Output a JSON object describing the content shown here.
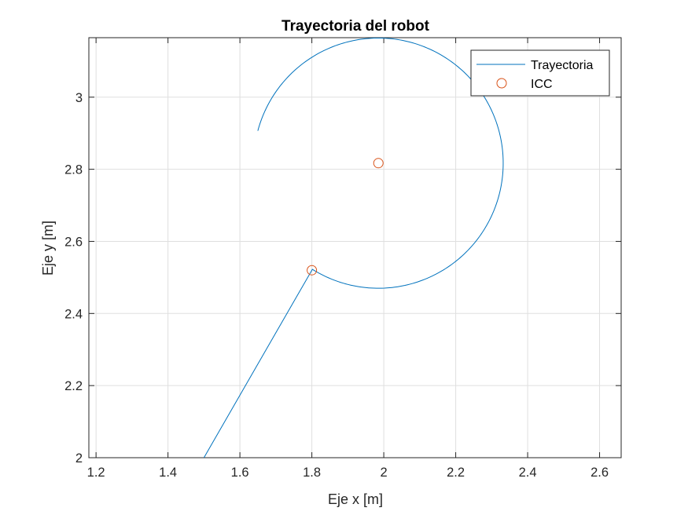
{
  "chart_data": {
    "type": "line",
    "title": "Trayectoria del robot",
    "xlabel": "Eje x [m]",
    "ylabel": "Eje y [m]",
    "xlim": [
      1.18,
      2.66
    ],
    "ylim": [
      2.0,
      3.165
    ],
    "xticks": [
      1.2,
      1.4,
      1.6,
      1.8,
      2.0,
      2.2,
      2.4,
      2.6
    ],
    "xtick_labels": [
      "1.2",
      "1.4",
      "1.6",
      "1.8",
      "2",
      "2.2",
      "2.4",
      "2.6"
    ],
    "yticks": [
      2.0,
      2.2,
      2.4,
      2.6,
      2.8,
      3.0
    ],
    "ytick_labels": [
      "2",
      "2.2",
      "2.4",
      "2.6",
      "2.8",
      "3"
    ],
    "grid": true,
    "legend_position": "top-right",
    "series": [
      {
        "name": "Trayectoria",
        "kind": "line",
        "color": "#0072BD",
        "segments": [
          {
            "shape": "line",
            "points": [
              [
                1.5,
                2.0
              ],
              [
                1.8,
                2.52
              ]
            ]
          },
          {
            "shape": "arc",
            "center": [
              1.985,
              2.817
            ],
            "radius": 0.347,
            "start_point": [
              1.8,
              2.52
            ],
            "end_point": [
              1.645,
              2.908
            ],
            "direction": "counterclockwise"
          }
        ]
      },
      {
        "name": "ICC",
        "kind": "marker",
        "marker": "circle",
        "color": "#D95319",
        "points": [
          [
            1.8,
            2.52
          ],
          [
            1.985,
            2.817
          ]
        ]
      }
    ]
  }
}
